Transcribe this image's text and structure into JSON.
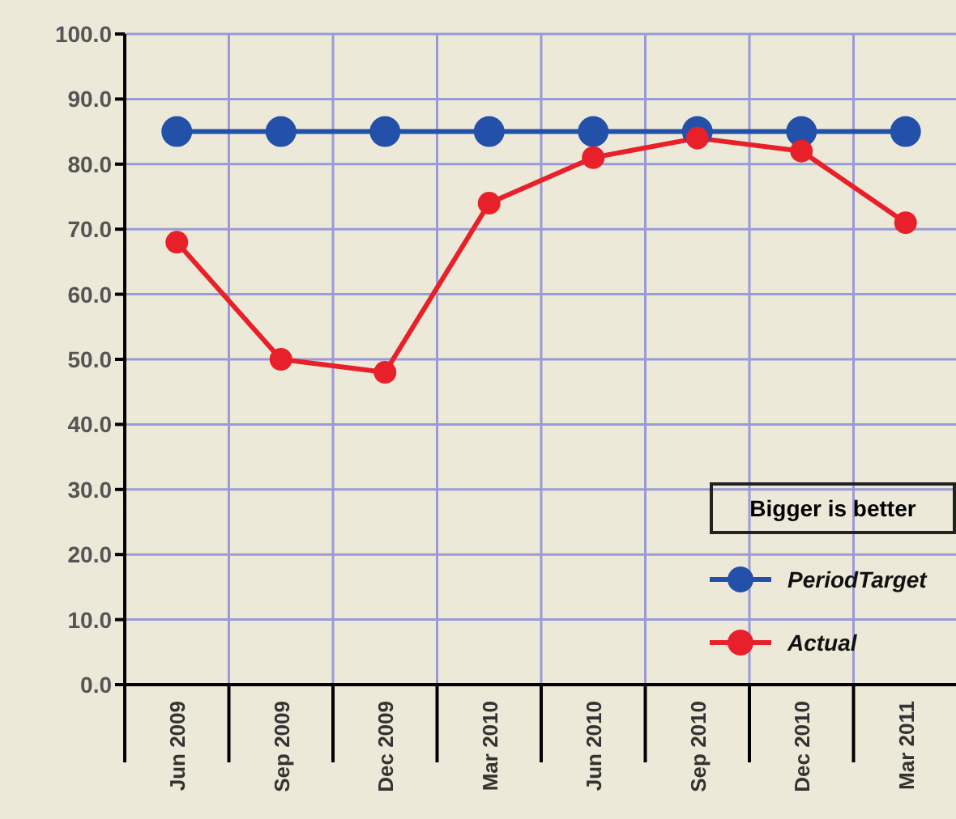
{
  "chart_data": {
    "type": "line",
    "categories": [
      "Jun 2009",
      "Sep 2009",
      "Dec 2009",
      "Mar 2010",
      "Jun 2010",
      "Sep 2010",
      "Dec 2010",
      "Mar 2011"
    ],
    "series": [
      {
        "name": "PeriodTarget",
        "color": "#2350a8",
        "values": [
          85,
          85,
          85,
          85,
          85,
          85,
          85,
          85
        ]
      },
      {
        "name": "Actual",
        "color": "#e8202a",
        "values": [
          68,
          50,
          48,
          74,
          81,
          84,
          82,
          71
        ]
      }
    ],
    "ylim": [
      0,
      100
    ],
    "yticks": [
      {
        "value": 0,
        "label": "0.0"
      },
      {
        "value": 10,
        "label": "10.0"
      },
      {
        "value": 20,
        "label": "20.0"
      },
      {
        "value": 30,
        "label": "30.0"
      },
      {
        "value": 40,
        "label": "40.0"
      },
      {
        "value": 50,
        "label": "50.0"
      },
      {
        "value": 60,
        "label": "60.0"
      },
      {
        "value": 70,
        "label": "70.0"
      },
      {
        "value": 80,
        "label": "80.0"
      },
      {
        "value": 90,
        "label": "90.0"
      },
      {
        "value": 100,
        "label": "100.0"
      }
    ],
    "legend_title": "Bigger is better",
    "legend": "bottom right",
    "grid": true,
    "marker": "circle",
    "line_style": "solid"
  }
}
